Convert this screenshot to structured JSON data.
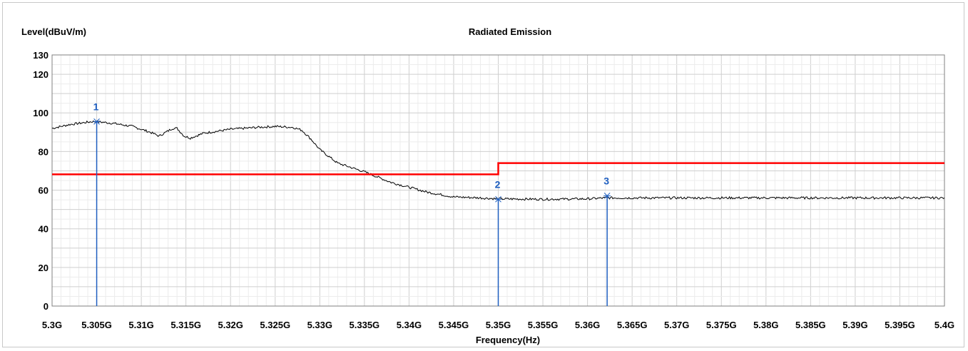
{
  "chart_data": {
    "type": "line",
    "title": "Radiated Emission",
    "ylabel": "Level(dBuV/m)",
    "xlabel": "Frequency(Hz)",
    "xlim": [
      5.3,
      5.4
    ],
    "ylim": [
      0,
      130
    ],
    "x_unit": "GHz",
    "xticks": [
      5.3,
      5.305,
      5.31,
      5.315,
      5.32,
      5.325,
      5.33,
      5.335,
      5.34,
      5.345,
      5.35,
      5.355,
      5.36,
      5.365,
      5.37,
      5.375,
      5.38,
      5.385,
      5.39,
      5.395,
      5.4
    ],
    "xtick_labels": [
      "5.3G",
      "5.305G",
      "5.31G",
      "5.315G",
      "5.32G",
      "5.325G",
      "5.33G",
      "5.335G",
      "5.34G",
      "5.345G",
      "5.35G",
      "5.355G",
      "5.36G",
      "5.365G",
      "5.37G",
      "5.375G",
      "5.38G",
      "5.385G",
      "5.39G",
      "5.395G",
      "5.4G"
    ],
    "yticks": [
      0,
      20,
      40,
      60,
      80,
      100,
      120,
      130
    ],
    "ytick_labels": [
      "0",
      "20",
      "40",
      "60",
      "80",
      "100",
      "120",
      "130"
    ],
    "grid": true,
    "series": [
      {
        "color": "#000000",
        "x": [
          5.3,
          5.302,
          5.3045,
          5.305,
          5.307,
          5.309,
          5.311,
          5.312,
          5.3135,
          5.314,
          5.3148,
          5.3155,
          5.317,
          5.32,
          5.323,
          5.325,
          5.327,
          5.328,
          5.329,
          5.33,
          5.332,
          5.335,
          5.338,
          5.342,
          5.345,
          5.348,
          5.35,
          5.355,
          5.36,
          5.362,
          5.365,
          5.37,
          5.38,
          5.39,
          5.395,
          5.4
        ],
        "y": [
          92,
          94,
          95.5,
          95.5,
          94.5,
          93,
          90,
          88,
          92,
          92,
          88,
          87,
          89.5,
          91.5,
          92.5,
          93,
          92.5,
          91,
          86.5,
          81,
          74,
          69.5,
          64,
          59,
          56.5,
          56,
          55.5,
          55.3,
          55.5,
          56,
          56,
          56,
          56,
          56,
          56,
          56
        ]
      },
      {
        "color": "#ff0000",
        "x": [
          5.3,
          5.35,
          5.35,
          5.4
        ],
        "y": [
          68.2,
          68.2,
          74,
          74
        ]
      }
    ],
    "markers": [
      {
        "label": "1",
        "x": 5.305,
        "y": 95.5
      },
      {
        "label": "2",
        "x": 5.35,
        "y": 55.3
      },
      {
        "label": "3",
        "x": 5.3622,
        "y": 57.1
      }
    ],
    "colors": {
      "trace": "#000000",
      "limit": "#ff0000",
      "marker": "#1f5fc0",
      "grid": "#d4d4d4"
    }
  }
}
